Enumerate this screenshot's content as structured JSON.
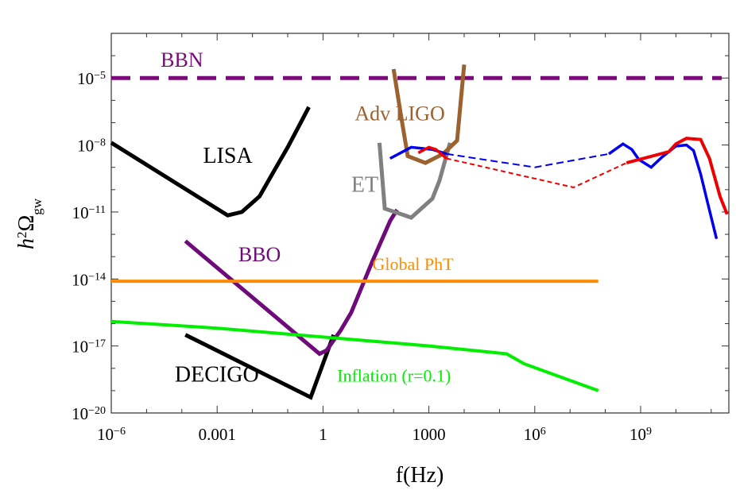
{
  "chart_data": {
    "type": "line",
    "xscale": "log",
    "yscale": "log",
    "xlim_exp": [
      -6,
      11.5
    ],
    "ylim_exp": [
      -20,
      -3
    ],
    "xlabel": "f(Hz)",
    "ylabel": "h²Ω_gw",
    "ylabel_parts": {
      "base": "h",
      "sup": "2",
      "omega": "Ω",
      "sub": "gw"
    },
    "xticks": [
      {
        "text": "10",
        "sup": "−6",
        "exp": -6
      },
      {
        "text": "0.001",
        "sup": "",
        "exp": -3
      },
      {
        "text": "1",
        "sup": "",
        "exp": 0
      },
      {
        "text": "1000",
        "sup": "",
        "exp": 3
      },
      {
        "text": "10",
        "sup": "6",
        "exp": 6
      },
      {
        "text": "10",
        "sup": "9",
        "exp": 9
      }
    ],
    "yticks": [
      {
        "text": "10",
        "sup": "−5",
        "exp": -5
      },
      {
        "text": "10",
        "sup": "−8",
        "exp": -8
      },
      {
        "text": "10",
        "sup": "−11",
        "exp": -11
      },
      {
        "text": "10",
        "sup": "−14",
        "exp": -14
      },
      {
        "text": "10",
        "sup": "−17",
        "exp": -17
      },
      {
        "text": "10",
        "sup": "−20",
        "exp": -20
      }
    ],
    "series": [
      {
        "name": "BBN",
        "color": "#7a0a7a",
        "width": 5,
        "dash": "24,12",
        "points": [
          [
            -6,
            -5
          ],
          [
            11.3,
            -5
          ]
        ]
      },
      {
        "name": "LISA",
        "color": "#000000",
        "width": 5,
        "dash": "",
        "points": [
          [
            -6,
            -7.9
          ],
          [
            -2.7,
            -11.15
          ],
          [
            -2.3,
            -11
          ],
          [
            -1.8,
            -10.3
          ],
          [
            -1.4,
            -9.2
          ],
          [
            -1.0,
            -8.1
          ],
          [
            -0.6,
            -6.9
          ],
          [
            -0.4,
            -6.3
          ]
        ]
      },
      {
        "name": "DECIGO",
        "color": "#000000",
        "width": 5,
        "dash": "",
        "points": [
          [
            -3.9,
            -16.5
          ],
          [
            -0.35,
            -19.3
          ],
          [
            0.3,
            -16.5
          ]
        ]
      },
      {
        "name": "BBO",
        "color": "#6e0a7a",
        "width": 5,
        "dash": "",
        "points": [
          [
            -3.9,
            -12.3
          ],
          [
            -0.1,
            -17.35
          ],
          [
            0.1,
            -17.2
          ],
          [
            0.5,
            -16.3
          ],
          [
            0.8,
            -15.5
          ],
          [
            1.4,
            -13.2
          ],
          [
            1.9,
            -11.4
          ],
          [
            2.1,
            -10.9
          ]
        ]
      },
      {
        "name": "ET",
        "color": "#808080",
        "width": 5,
        "dash": "",
        "points": [
          [
            1.6,
            -7.9
          ],
          [
            1.75,
            -10.85
          ],
          [
            2.5,
            -11.25
          ],
          [
            3.1,
            -10.4
          ],
          [
            3.3,
            -9.6
          ],
          [
            3.6,
            -7.9
          ]
        ]
      },
      {
        "name": "Adv LIGO",
        "color": "#9b6230",
        "width": 5,
        "dash": "",
        "points": [
          [
            2.0,
            -4.6
          ],
          [
            2.2,
            -6.6
          ],
          [
            2.4,
            -8.5
          ],
          [
            2.9,
            -8.8
          ],
          [
            3.4,
            -8.4
          ],
          [
            3.8,
            -7.8
          ],
          [
            4.0,
            -4.4
          ]
        ]
      },
      {
        "name": "Global PhT",
        "color": "#ff8c00",
        "width": 4,
        "dash": "",
        "points": [
          [
            -6,
            -14.1
          ],
          [
            7.8,
            -14.1
          ]
        ]
      },
      {
        "name": "Inflation (r=0.1)",
        "color": "#00ee00",
        "width": 4,
        "dash": "",
        "points": [
          [
            -6,
            -15.9
          ],
          [
            -3,
            -16.2
          ],
          [
            0,
            -16.6
          ],
          [
            3,
            -17.0
          ],
          [
            5.2,
            -17.35
          ],
          [
            5.7,
            -17.8
          ],
          [
            6.4,
            -18.2
          ],
          [
            7.8,
            -19.0
          ]
        ]
      },
      {
        "name": "Blue solid",
        "color": "#0000ee",
        "width": 3.5,
        "dash": "",
        "points": [
          [
            1.9,
            -8.6
          ],
          [
            2.5,
            -8.1
          ],
          [
            3.1,
            -8.2
          ],
          [
            3.5,
            -8.4
          ]
        ]
      },
      {
        "name": "Blue dashed",
        "color": "#0000ee",
        "width": 2,
        "dash": "9,5",
        "points": [
          [
            3.5,
            -8.4
          ],
          [
            6.0,
            -9.0
          ],
          [
            8.1,
            -8.4
          ]
        ]
      },
      {
        "name": "Blue high",
        "color": "#0000ee",
        "width": 3.5,
        "dash": "",
        "points": [
          [
            8.1,
            -8.4
          ],
          [
            8.5,
            -7.95
          ],
          [
            8.75,
            -8.2
          ],
          [
            8.95,
            -8.65
          ],
          [
            9.3,
            -9.0
          ],
          [
            9.6,
            -8.55
          ],
          [
            10.0,
            -8.05
          ],
          [
            10.3,
            -8.0
          ],
          [
            10.5,
            -8.25
          ],
          [
            10.7,
            -9.3
          ],
          [
            10.9,
            -10.6
          ],
          [
            11.15,
            -12.2
          ]
        ]
      },
      {
        "name": "Red solid",
        "color": "#ee0000",
        "width": 3.5,
        "dash": "",
        "points": [
          [
            2.7,
            -8.35
          ],
          [
            3.0,
            -8.1
          ],
          [
            3.2,
            -8.2
          ],
          [
            3.5,
            -8.6
          ]
        ]
      },
      {
        "name": "Red dashed",
        "color": "#ee0000",
        "width": 2,
        "dash": "6,4",
        "points": [
          [
            3.5,
            -8.6
          ],
          [
            7.1,
            -9.9
          ],
          [
            8.6,
            -8.8
          ]
        ]
      },
      {
        "name": "Red high",
        "color": "#ee0000",
        "width": 4,
        "dash": "",
        "points": [
          [
            8.6,
            -8.8
          ],
          [
            9.8,
            -8.3
          ],
          [
            10.0,
            -7.95
          ],
          [
            10.3,
            -7.7
          ],
          [
            10.7,
            -7.75
          ],
          [
            10.95,
            -8.6
          ],
          [
            11.25,
            -10.3
          ],
          [
            11.45,
            -11.1
          ]
        ]
      }
    ],
    "annotations": [
      {
        "text": "BBN",
        "color": "#7a0a7a",
        "size": 26,
        "at": [
          -4.6,
          -4.5
        ]
      },
      {
        "text": "Adv LIGO",
        "color": "#9b6230",
        "size": 26,
        "at": [
          0.9,
          -6.9
        ]
      },
      {
        "text": "LISA",
        "color": "#000000",
        "size": 28,
        "at": [
          -3.4,
          -8.8
        ]
      },
      {
        "text": "ET",
        "color": "#808080",
        "size": 28,
        "at": [
          0.8,
          -10.1
        ]
      },
      {
        "text": "BBO",
        "color": "#6e0a7a",
        "size": 26,
        "at": [
          -2.4,
          -13.2
        ]
      },
      {
        "text": "Global PhT",
        "color": "#ff8c00",
        "size": 22,
        "at": [
          1.4,
          -13.6
        ]
      },
      {
        "text": "DECIGO",
        "color": "#000000",
        "size": 28,
        "at": [
          -4.2,
          -18.6
        ]
      },
      {
        "text": "Inflation  (r=0.1)",
        "color": "#00ee00",
        "size": 22,
        "at": [
          0.4,
          -18.6
        ]
      }
    ]
  }
}
